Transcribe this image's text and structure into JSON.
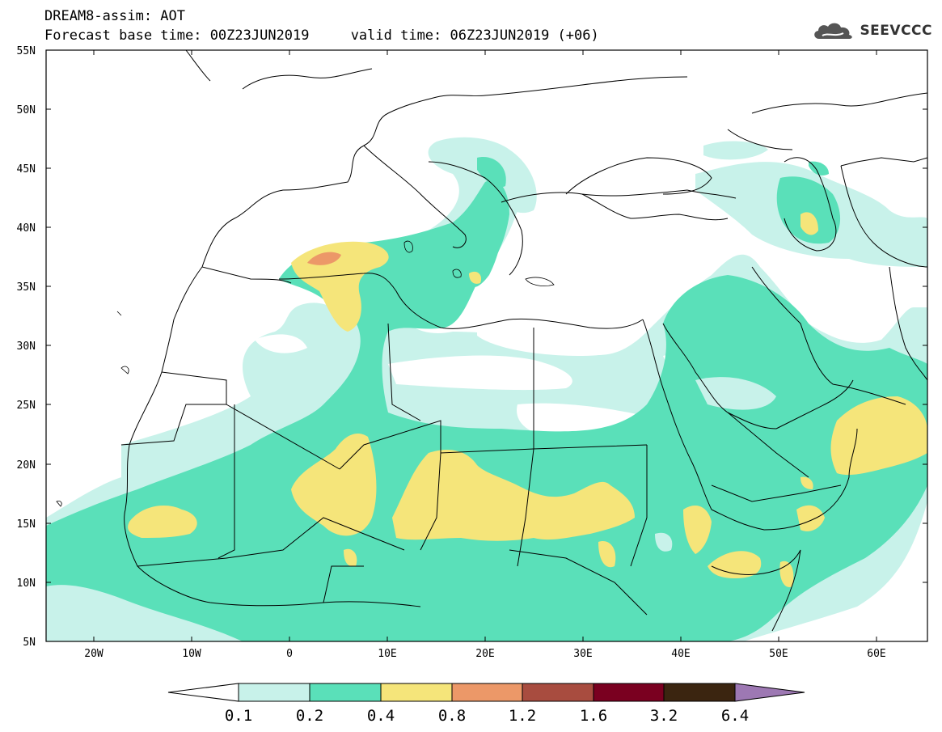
{
  "title": {
    "line1": "DREAM8-assim: AOT",
    "line2": "Forecast base time: 00Z23JUN2019     valid time: 06Z23JUN2019 (+06)"
  },
  "logo": {
    "text": "SEEVCCC",
    "icon": "cloud-icon"
  },
  "map": {
    "lon_ticks": [
      "20W",
      "10W",
      "0",
      "10E",
      "20E",
      "30E",
      "40E",
      "50E",
      "60E"
    ],
    "lat_ticks": [
      "55N",
      "50N",
      "45N",
      "40N",
      "35N",
      "30N",
      "25N",
      "20N",
      "15N",
      "10N",
      "5N"
    ]
  },
  "colorbar": {
    "labels": [
      "0.1",
      "0.2",
      "0.4",
      "0.8",
      "1.2",
      "1.6",
      "3.2",
      "6.4"
    ],
    "colors": [
      "#ffffff",
      "#c8f2ea",
      "#5ae0b9",
      "#f5e57a",
      "#ec9868",
      "#a84c3f",
      "#7a0020",
      "#3b2510",
      "#9d78b3"
    ]
  },
  "colors": {
    "level1": "#c8f2ea",
    "level2": "#5ae0b9",
    "level3": "#f5e57a",
    "level4": "#ec9868",
    "border": "#000000"
  }
}
